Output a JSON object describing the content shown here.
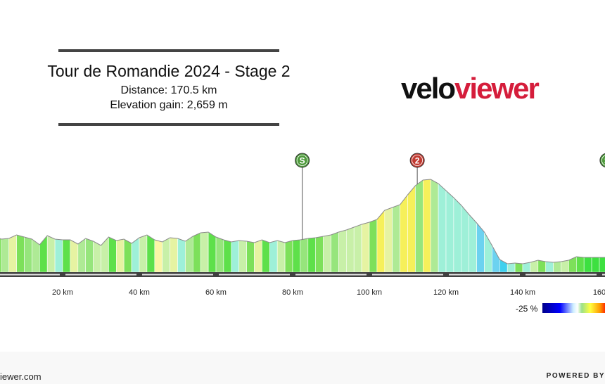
{
  "header": {
    "title": "Tour de Romandie 2024 - Stage 2",
    "distance": "Distance: 170.5 km",
    "elevation": "Elevation gain: 2,659 m"
  },
  "brand": {
    "part1": "velo",
    "part2": "viewer",
    "color_main": "#111111",
    "color_accent": "#d51d3b"
  },
  "legend": {
    "label": "-25 %"
  },
  "footer": {
    "site": "iewer.com",
    "powered": "POWERED BY"
  },
  "chart_data": {
    "type": "area",
    "title": "Tour de Romandie 2024 - Stage 2",
    "x_unit": "km",
    "xlim": [
      0,
      170.5
    ],
    "x_ticks": [
      20,
      40,
      60,
      80,
      100,
      120,
      140,
      160
    ],
    "x_tick_labels": [
      "20 km",
      "40 km",
      "60 km",
      "80 km",
      "100 km",
      "120 km",
      "140 km",
      "160"
    ],
    "profile": [
      [
        0,
        48
      ],
      [
        2,
        51
      ],
      [
        4,
        47
      ],
      [
        6,
        48
      ],
      [
        8,
        53
      ],
      [
        10,
        50
      ],
      [
        12,
        47
      ],
      [
        14,
        39
      ],
      [
        16,
        52
      ],
      [
        18,
        47
      ],
      [
        20,
        46
      ],
      [
        22,
        46
      ],
      [
        24,
        40
      ],
      [
        26,
        48
      ],
      [
        28,
        44
      ],
      [
        30,
        38
      ],
      [
        32,
        50
      ],
      [
        34,
        45
      ],
      [
        36,
        47
      ],
      [
        38,
        41
      ],
      [
        40,
        49
      ],
      [
        42,
        53
      ],
      [
        44,
        46
      ],
      [
        46,
        43
      ],
      [
        48,
        49
      ],
      [
        50,
        48
      ],
      [
        52,
        44
      ],
      [
        54,
        51
      ],
      [
        56,
        56
      ],
      [
        58,
        57
      ],
      [
        60,
        50
      ],
      [
        62,
        46
      ],
      [
        64,
        43
      ],
      [
        66,
        45
      ],
      [
        68,
        44
      ],
      [
        70,
        42
      ],
      [
        72,
        46
      ],
      [
        74,
        42
      ],
      [
        76,
        45
      ],
      [
        78,
        42
      ],
      [
        80,
        45
      ],
      [
        82,
        46
      ],
      [
        84,
        48
      ],
      [
        86,
        49
      ],
      [
        88,
        51
      ],
      [
        90,
        53
      ],
      [
        92,
        57
      ],
      [
        94,
        60
      ],
      [
        96,
        64
      ],
      [
        98,
        68
      ],
      [
        100,
        71
      ],
      [
        102,
        75
      ],
      [
        104,
        88
      ],
      [
        106,
        92
      ],
      [
        108,
        96
      ],
      [
        110,
        110
      ],
      [
        112,
        123
      ],
      [
        114,
        131
      ],
      [
        116,
        132
      ],
      [
        118,
        126
      ],
      [
        120,
        116
      ],
      [
        122,
        106
      ],
      [
        124,
        95
      ],
      [
        126,
        82
      ],
      [
        128,
        70
      ],
      [
        130,
        57
      ],
      [
        132,
        38
      ],
      [
        134,
        18
      ],
      [
        136,
        12
      ],
      [
        138,
        13
      ],
      [
        140,
        12
      ],
      [
        142,
        14
      ],
      [
        144,
        17
      ],
      [
        146,
        15
      ],
      [
        148,
        14
      ],
      [
        150,
        15
      ],
      [
        152,
        17
      ],
      [
        154,
        22
      ],
      [
        156,
        21
      ],
      [
        158,
        21
      ],
      [
        160,
        21
      ],
      [
        162,
        21
      ]
    ],
    "segment_colors": [
      "#c8f0a8",
      "#7de05a",
      "#aeea95",
      "#e6f3a2",
      "#7de05a",
      "#96e57c",
      "#aeea95",
      "#5ee04a",
      "#c8f0a8",
      "#9ef0d8",
      "#5ee04a",
      "#e6f3a2",
      "#aeea95",
      "#96e57c",
      "#c8f0a8",
      "#c8f0a8",
      "#5ee04a",
      "#e6f3a2",
      "#7de05a",
      "#9ef0d8",
      "#c8f0a8",
      "#5ee04a",
      "#fbf6a6",
      "#c8f0a8",
      "#e6f3a2",
      "#9ef0d8",
      "#aeea95",
      "#7de05a",
      "#c8f0a8",
      "#5ee04a",
      "#96e57c",
      "#5ee04a",
      "#9ef0d8",
      "#c8f0a8",
      "#7de05a",
      "#e6f3a2",
      "#5ee04a",
      "#9ef0d8",
      "#c8f0a8",
      "#7de05a",
      "#5ee04a",
      "#96e57c",
      "#5ee04a",
      "#7de05a",
      "#c8f0a8",
      "#96e57c",
      "#c8f0a8",
      "#c8f0a8",
      "#c8f0a8",
      "#e6f3a2",
      "#7de05a",
      "#f6f05a",
      "#e6f3a2",
      "#aeea95",
      "#f6f05a",
      "#f6f05a",
      "#96e57c",
      "#f6f05a",
      "#aeea95",
      "#9ef0d8",
      "#9ef0d8",
      "#9ef0d8",
      "#9ef0d8",
      "#9ef0d8",
      "#6cd2f0",
      "#9ef0d8",
      "#6cd2f0",
      "#3fd0ee",
      "#9ef0d8",
      "#7de05a",
      "#9ef0d8",
      "#c8f0a8",
      "#7de05a",
      "#9ef0d8",
      "#aeea95",
      "#c8f0a8",
      "#7de05a",
      "#5ee04a",
      "#3de040",
      "#3de040",
      "#3de040"
    ],
    "markers": [
      {
        "km": 82.5,
        "label": "S",
        "type": "sprint",
        "color": "#4e9a3c"
      },
      {
        "km": 112.5,
        "label": "2",
        "type": "climb",
        "color": "#c23b32"
      },
      {
        "km": 162,
        "label": "S",
        "type": "sprint",
        "color": "#4e9a3c"
      }
    ]
  }
}
